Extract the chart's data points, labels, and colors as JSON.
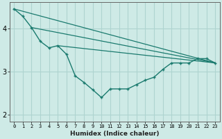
{
  "xlabel": "Humidex (Indice chaleur)",
  "ylabel": "",
  "background_color": "#ceeae6",
  "grid_color": "#aed4d0",
  "line_color": "#1a7a6e",
  "xlim": [
    -0.5,
    23.5
  ],
  "ylim": [
    1.85,
    4.6
  ],
  "yticks": [
    2,
    3,
    4
  ],
  "xticks": [
    0,
    1,
    2,
    3,
    4,
    5,
    6,
    7,
    8,
    9,
    10,
    11,
    12,
    13,
    14,
    15,
    16,
    17,
    18,
    19,
    20,
    21,
    22,
    23
  ],
  "line1_x": [
    0,
    1,
    2,
    3,
    4,
    5,
    6,
    7,
    8,
    9,
    10,
    11,
    12,
    13,
    14,
    15,
    16,
    17,
    18,
    19,
    20,
    21,
    22,
    23
  ],
  "line1_y": [
    4.45,
    4.28,
    4.02,
    3.7,
    3.55,
    3.6,
    3.4,
    2.9,
    2.75,
    2.58,
    2.4,
    2.6,
    2.6,
    2.6,
    2.7,
    2.8,
    2.87,
    3.05,
    3.2,
    3.2,
    3.2,
    3.3,
    3.3,
    3.2
  ],
  "line3_x": [
    0,
    23
  ],
  "line3_y": [
    4.45,
    3.2
  ],
  "line4_x": [
    2,
    23
  ],
  "line4_y": [
    4.02,
    3.2
  ],
  "line5_x": [
    5,
    23
  ],
  "line5_y": [
    3.6,
    3.2
  ]
}
